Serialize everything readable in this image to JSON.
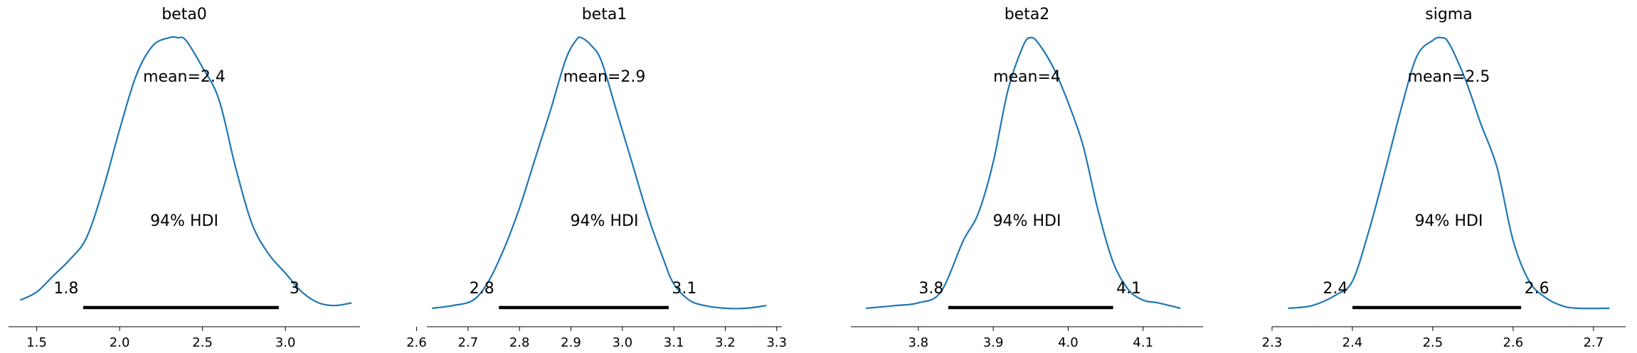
{
  "chart_data": [
    {
      "type": "line",
      "title": "beta0",
      "mean_label": "mean=2.4",
      "hdi_label": "94% HDI",
      "hdi_low_label": "1.8",
      "hdi_high_label": "3",
      "hdi": [
        1.78,
        2.96
      ],
      "xlim": [
        1.33,
        3.45
      ],
      "xticks": [
        1.5,
        2.0,
        2.5,
        3.0
      ],
      "xtick_labels": [
        "1.5",
        "2.0",
        "2.5",
        "3.0"
      ],
      "density": {
        "x": [
          1.4,
          1.5,
          1.6,
          1.7,
          1.8,
          1.9,
          2.0,
          2.1,
          2.2,
          2.3,
          2.35,
          2.4,
          2.5,
          2.6,
          2.7,
          2.8,
          2.9,
          3.0,
          3.1,
          3.2,
          3.3,
          3.4
        ],
        "y": [
          0.03,
          0.06,
          0.12,
          0.18,
          0.26,
          0.44,
          0.66,
          0.86,
          0.97,
          1.0,
          1.0,
          0.99,
          0.89,
          0.77,
          0.52,
          0.31,
          0.2,
          0.13,
          0.06,
          0.02,
          0.01,
          0.02
        ]
      }
    },
    {
      "type": "line",
      "title": "beta1",
      "mean_label": "mean=2.9",
      "hdi_label": "94% HDI",
      "hdi_low_label": "2.8",
      "hdi_high_label": "3.1",
      "hdi": [
        2.76,
        3.09
      ],
      "xlim": [
        2.62,
        3.31
      ],
      "xticks": [
        2.6,
        2.7,
        2.8,
        2.9,
        3.0,
        3.1,
        3.2,
        3.3
      ],
      "xtick_labels": [
        "2.6",
        "2.7",
        "2.8",
        "2.9",
        "3.0",
        "3.1",
        "3.2",
        "3.3"
      ],
      "density": {
        "x": [
          2.63,
          2.67,
          2.71,
          2.74,
          2.77,
          2.8,
          2.83,
          2.86,
          2.89,
          2.91,
          2.92,
          2.94,
          2.96,
          2.99,
          3.02,
          3.05,
          3.08,
          3.1,
          3.13,
          3.16,
          3.2,
          3.24,
          3.28
        ],
        "y": [
          0.0,
          0.01,
          0.03,
          0.1,
          0.22,
          0.37,
          0.55,
          0.73,
          0.92,
          0.99,
          1.0,
          0.97,
          0.91,
          0.72,
          0.53,
          0.34,
          0.18,
          0.09,
          0.03,
          0.01,
          0.0,
          0.0,
          0.01
        ]
      }
    },
    {
      "type": "line",
      "title": "beta2",
      "mean_label": "mean=4",
      "hdi_label": "94% HDI",
      "hdi_low_label": "3.8",
      "hdi_high_label": "4.1",
      "hdi": [
        3.84,
        4.06
      ],
      "xlim": [
        3.71,
        4.18
      ],
      "xticks": [
        3.8,
        3.9,
        4.0,
        4.1
      ],
      "xtick_labels": [
        "3.8",
        "3.9",
        "4.0",
        "4.1"
      ],
      "density": {
        "x": [
          3.73,
          3.77,
          3.8,
          3.83,
          3.86,
          3.88,
          3.9,
          3.92,
          3.94,
          3.95,
          3.96,
          3.98,
          4.0,
          4.02,
          4.04,
          4.06,
          4.08,
          4.1,
          4.12,
          4.15
        ],
        "y": [
          0.0,
          0.01,
          0.02,
          0.06,
          0.25,
          0.35,
          0.54,
          0.81,
          0.97,
          1.0,
          0.98,
          0.89,
          0.76,
          0.6,
          0.36,
          0.17,
          0.07,
          0.03,
          0.02,
          0.0
        ]
      }
    },
    {
      "type": "line",
      "title": "sigma",
      "mean_label": "mean=2.5",
      "hdi_label": "94% HDI",
      "hdi_low_label": "2.4",
      "hdi_high_label": "2.6",
      "hdi": [
        2.4,
        2.61
      ],
      "xlim": [
        2.3,
        2.74
      ],
      "xticks": [
        2.3,
        2.4,
        2.5,
        2.6,
        2.7
      ],
      "xtick_labels": [
        "2.3",
        "2.4",
        "2.5",
        "2.6",
        "2.7"
      ],
      "density": {
        "x": [
          2.32,
          2.35,
          2.38,
          2.4,
          2.42,
          2.44,
          2.46,
          2.48,
          2.5,
          2.51,
          2.52,
          2.54,
          2.56,
          2.58,
          2.6,
          2.62,
          2.64,
          2.66,
          2.68,
          2.72
        ],
        "y": [
          0.0,
          0.01,
          0.05,
          0.1,
          0.28,
          0.5,
          0.73,
          0.93,
          0.99,
          1.0,
          0.98,
          0.85,
          0.68,
          0.52,
          0.25,
          0.1,
          0.04,
          0.01,
          0.0,
          0.0
        ]
      }
    }
  ]
}
